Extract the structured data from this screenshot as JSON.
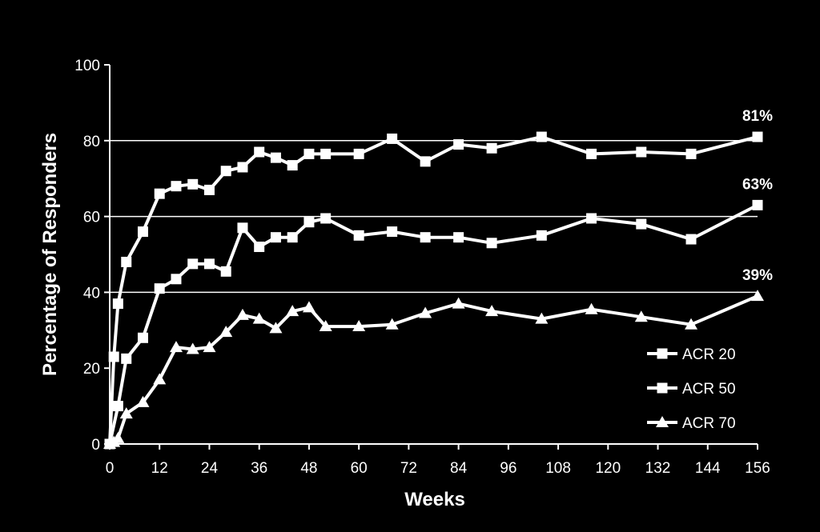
{
  "chart_data": {
    "type": "line",
    "title": "",
    "xlabel": "Weeks",
    "ylabel": "Percentage of Responders",
    "xlim": [
      0,
      156
    ],
    "ylim": [
      0,
      100
    ],
    "x_ticks": [
      "0",
      "12",
      "24",
      "36",
      "48",
      "60",
      "72",
      "84",
      "96",
      "108",
      "120",
      "132",
      "144",
      "156"
    ],
    "y_ticks": [
      "0",
      "20",
      "40",
      "60",
      "80",
      "100"
    ],
    "gridlines": [
      40,
      60,
      80
    ],
    "legend_position": "bottom-right",
    "colors": {
      "background": "#000000",
      "foreground": "#ffffff"
    },
    "series": [
      {
        "name": "ACR 20",
        "marker": "square",
        "end_label": "81%",
        "points": [
          [
            0,
            0
          ],
          [
            1,
            23
          ],
          [
            2,
            37
          ],
          [
            4,
            48
          ],
          [
            8,
            56
          ],
          [
            12,
            66
          ],
          [
            16,
            68
          ],
          [
            20,
            68.5
          ],
          [
            24,
            67
          ],
          [
            28,
            72
          ],
          [
            32,
            73
          ],
          [
            36,
            77
          ],
          [
            40,
            75.5
          ],
          [
            44,
            73.5
          ],
          [
            48,
            76.5
          ],
          [
            52,
            76.5
          ],
          [
            60,
            76.5
          ],
          [
            68,
            80.5
          ],
          [
            76,
            74.5
          ],
          [
            84,
            79
          ],
          [
            92,
            78
          ],
          [
            104,
            81
          ],
          [
            116,
            76.5
          ],
          [
            128,
            77
          ],
          [
            140,
            76.5
          ],
          [
            156,
            81
          ]
        ]
      },
      {
        "name": "ACR 50",
        "marker": "square",
        "end_label": "63%",
        "points": [
          [
            0,
            0
          ],
          [
            2,
            10
          ],
          [
            4,
            22.5
          ],
          [
            8,
            28
          ],
          [
            12,
            41
          ],
          [
            16,
            43.5
          ],
          [
            20,
            47.5
          ],
          [
            24,
            47.5
          ],
          [
            28,
            45.5
          ],
          [
            32,
            57
          ],
          [
            36,
            52
          ],
          [
            40,
            54.5
          ],
          [
            44,
            54.5
          ],
          [
            48,
            58.5
          ],
          [
            52,
            59.5
          ],
          [
            60,
            55
          ],
          [
            68,
            56
          ],
          [
            76,
            54.5
          ],
          [
            84,
            54.5
          ],
          [
            92,
            53
          ],
          [
            104,
            55
          ],
          [
            116,
            59.5
          ],
          [
            128,
            58
          ],
          [
            140,
            54
          ],
          [
            156,
            63
          ]
        ]
      },
      {
        "name": "ACR 70",
        "marker": "triangle",
        "end_label": "39%",
        "points": [
          [
            0,
            0
          ],
          [
            1,
            0.5
          ],
          [
            2,
            1.5
          ],
          [
            4,
            8
          ],
          [
            8,
            11
          ],
          [
            12,
            17
          ],
          [
            16,
            25.5
          ],
          [
            20,
            25
          ],
          [
            24,
            25.5
          ],
          [
            28,
            29.5
          ],
          [
            32,
            34
          ],
          [
            36,
            33
          ],
          [
            40,
            30.5
          ],
          [
            44,
            35
          ],
          [
            48,
            36
          ],
          [
            52,
            31
          ],
          [
            60,
            31
          ],
          [
            68,
            31.5
          ],
          [
            76,
            34.5
          ],
          [
            84,
            37
          ],
          [
            92,
            35
          ],
          [
            104,
            33
          ],
          [
            116,
            35.5
          ],
          [
            128,
            33.5
          ],
          [
            140,
            31.5
          ],
          [
            156,
            39
          ]
        ]
      }
    ]
  }
}
